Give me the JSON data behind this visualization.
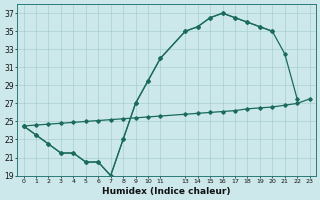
{
  "xlabel": "Humidex (Indice chaleur)",
  "bg_color": "#cce8ea",
  "grid_color": "#9ec8cc",
  "line_color": "#1a6b5a",
  "xlim": [
    -0.5,
    23.5
  ],
  "ylim": [
    19,
    38
  ],
  "s1_x": [
    0,
    1,
    2,
    3,
    4,
    5,
    6,
    7,
    8,
    9,
    10,
    11,
    13,
    14,
    15,
    16,
    17,
    18,
    19,
    20
  ],
  "s1_y": [
    24.5,
    23.5,
    22.5,
    21.5,
    21.5,
    20.5,
    20.5,
    19.0,
    23.0,
    27.0,
    29.5,
    32.0,
    35.0,
    35.5,
    36.5,
    37.0,
    36.5,
    36.0,
    35.5,
    35.0
  ],
  "s2_x": [
    0,
    1,
    2,
    3,
    4,
    5,
    6,
    7,
    8,
    9,
    10,
    11,
    13,
    14,
    15,
    16,
    17,
    18,
    19,
    20,
    21,
    22
  ],
  "s2_y": [
    24.5,
    23.5,
    22.5,
    21.5,
    21.5,
    20.5,
    20.5,
    19.0,
    23.0,
    27.0,
    29.5,
    32.0,
    35.0,
    35.5,
    36.5,
    37.0,
    36.5,
    36.0,
    35.5,
    35.0,
    32.5,
    27.5
  ],
  "s3_x": [
    0,
    1,
    2,
    3,
    4,
    5,
    6,
    7,
    8,
    9,
    10,
    11,
    13,
    14,
    15,
    16,
    17,
    18,
    19,
    20,
    21,
    22,
    23
  ],
  "s3_y": [
    24.5,
    24.6,
    24.7,
    24.8,
    24.9,
    25.0,
    25.1,
    25.2,
    25.3,
    25.4,
    25.5,
    25.6,
    25.8,
    25.9,
    26.0,
    26.1,
    26.2,
    26.4,
    26.5,
    26.6,
    26.8,
    27.0,
    27.5
  ],
  "yticks": [
    19,
    21,
    23,
    25,
    27,
    29,
    31,
    33,
    35,
    37
  ],
  "xticks": [
    0,
    1,
    2,
    3,
    4,
    5,
    6,
    7,
    8,
    9,
    10,
    11,
    13,
    14,
    15,
    16,
    17,
    18,
    19,
    20,
    21,
    22,
    23
  ]
}
